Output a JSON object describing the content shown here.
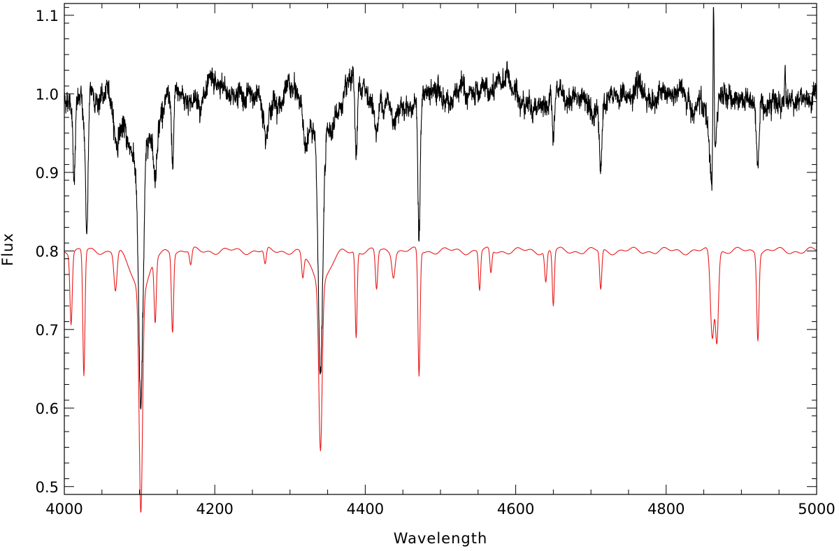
{
  "chart_data": {
    "type": "line",
    "title": "",
    "xlabel": "Wavelength",
    "ylabel": "Flux",
    "xlim": [
      4000,
      5000
    ],
    "ylim": [
      0.49,
      1.115
    ],
    "x_ticks": [
      4000,
      4200,
      4400,
      4600,
      4800,
      5000
    ],
    "x_tick_labels": [
      "4000",
      "4200",
      "4400",
      "4600",
      "4800",
      "5000"
    ],
    "y_ticks": [
      0.5,
      0.6,
      0.7,
      0.8,
      0.9,
      1.0,
      1.1
    ],
    "y_tick_labels": [
      "0.5",
      "0.6",
      "0.7",
      "0.8",
      "0.9",
      "1.0",
      "1.1"
    ],
    "grid": false,
    "legend": "none",
    "series": [
      {
        "color": "#000000",
        "style": "noisy",
        "continuum": 0.995,
        "lines": [
          {
            "x": 4013,
            "depth": 0.09,
            "width": 1.5
          },
          {
            "x": 4026,
            "depth": 0.03,
            "width": 2
          },
          {
            "x": 4030,
            "depth": 0.17,
            "width": 1.6
          },
          {
            "x": 4069,
            "depth": 0.04,
            "width": 3
          },
          {
            "x": 4084,
            "depth": 0.03,
            "width": 10
          },
          {
            "x": 4101.7,
            "depth": 0.33,
            "width": 3,
            "wings": 0.06,
            "wing_width": 14
          },
          {
            "x": 4121,
            "depth": 0.07,
            "width": 2
          },
          {
            "x": 4144,
            "depth": 0.1,
            "width": 1.6
          },
          {
            "x": 4267,
            "depth": 0.03,
            "width": 2
          },
          {
            "x": 4320,
            "depth": 0.03,
            "width": 3
          },
          {
            "x": 4340.5,
            "depth": 0.29,
            "width": 3,
            "wings": 0.06,
            "wing_width": 14
          },
          {
            "x": 4388,
            "depth": 0.1,
            "width": 1.5
          },
          {
            "x": 4415,
            "depth": 0.04,
            "width": 3
          },
          {
            "x": 4437,
            "depth": 0.03,
            "width": 3
          },
          {
            "x": 4471.5,
            "depth": 0.17,
            "width": 1.6
          },
          {
            "x": 4552,
            "depth": 0.03,
            "width": 2
          },
          {
            "x": 4640,
            "depth": 0.03,
            "width": 3
          },
          {
            "x": 4650,
            "depth": 0.06,
            "width": 2
          },
          {
            "x": 4713,
            "depth": 0.07,
            "width": 1.5
          },
          {
            "x": 4861.3,
            "depth": 0.09,
            "width": 3,
            "wings": 0.03,
            "wing_width": 10
          },
          {
            "x": 4921.9,
            "depth": 0.08,
            "width": 1.8
          }
        ],
        "bumps": [
          {
            "x": 4588,
            "height": 0.025,
            "width": 5
          },
          {
            "x": 4230,
            "height": 0.01,
            "width": 6
          },
          {
            "x": 4300,
            "height": 0.01,
            "width": 6
          }
        ],
        "spikes": [
          {
            "x": 4863,
            "value": 1.115,
            "width": 0.8
          },
          {
            "x": 4958,
            "value": 1.045,
            "width": 0.6
          }
        ]
      },
      {
        "color": "#e8191a",
        "style": "smooth",
        "continuum": 0.8,
        "lines": [
          {
            "x": 4009,
            "depth": 0.09,
            "width": 1.5
          },
          {
            "x": 4026,
            "depth": 0.16,
            "width": 1.4
          },
          {
            "x": 4068,
            "depth": 0.05,
            "width": 2
          },
          {
            "x": 4101.7,
            "depth": 0.28,
            "width": 2.2,
            "wings": 0.05,
            "wing_width": 12
          },
          {
            "x": 4120.8,
            "depth": 0.08,
            "width": 1.4
          },
          {
            "x": 4143.8,
            "depth": 0.1,
            "width": 1.4
          },
          {
            "x": 4168,
            "depth": 0.02,
            "width": 1.5
          },
          {
            "x": 4267,
            "depth": 0.02,
            "width": 1.5
          },
          {
            "x": 4317,
            "depth": 0.03,
            "width": 1.5
          },
          {
            "x": 4340.5,
            "depth": 0.21,
            "width": 2.2,
            "wings": 0.04,
            "wing_width": 12
          },
          {
            "x": 4387.9,
            "depth": 0.11,
            "width": 1.3
          },
          {
            "x": 4415,
            "depth": 0.05,
            "width": 1.5
          },
          {
            "x": 4437.5,
            "depth": 0.03,
            "width": 2
          },
          {
            "x": 4471.5,
            "depth": 0.16,
            "width": 1.4
          },
          {
            "x": 4552,
            "depth": 0.05,
            "width": 1.3
          },
          {
            "x": 4567,
            "depth": 0.03,
            "width": 1.3
          },
          {
            "x": 4640,
            "depth": 0.04,
            "width": 1.5
          },
          {
            "x": 4650,
            "depth": 0.07,
            "width": 1.3
          },
          {
            "x": 4713,
            "depth": 0.05,
            "width": 1.4
          },
          {
            "x": 4861.3,
            "depth": 0.11,
            "width": 2.5
          },
          {
            "x": 4867.5,
            "depth": 0.11,
            "width": 2.0
          },
          {
            "x": 4921.9,
            "depth": 0.11,
            "width": 1.5
          }
        ],
        "bumps": [],
        "spikes": []
      }
    ]
  }
}
